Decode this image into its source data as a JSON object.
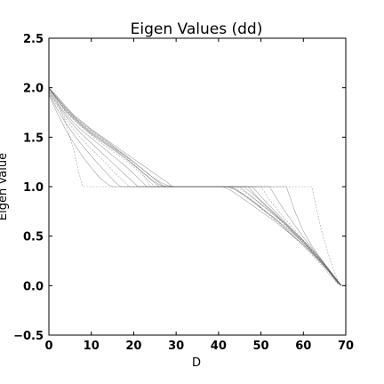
{
  "chart_data": {
    "type": "line",
    "title": "Eigen Values (dd)",
    "xlabel": "D",
    "ylabel": "Eigen Value",
    "xlim": [
      0,
      70
    ],
    "ylim": [
      -0.5,
      2.5
    ],
    "xticks": [
      "0",
      "10",
      "20",
      "30",
      "40",
      "50",
      "60",
      "70"
    ],
    "yticks": [
      "−0.5",
      "0.0",
      "0.5",
      "1.0",
      "1.5",
      "2.0",
      "2.5"
    ],
    "grid": false,
    "legend": "none",
    "line_color": "#555555",
    "series": [
      {
        "x": [
          0,
          2,
          4,
          6,
          8,
          10,
          12,
          14,
          16,
          18,
          20,
          22,
          24,
          26,
          28,
          30,
          40,
          42,
          44,
          46,
          48,
          50,
          52,
          54,
          56,
          58,
          60,
          62,
          64,
          66,
          68,
          69
        ],
        "y": [
          2.0,
          1.88,
          1.76,
          1.68,
          1.6,
          1.53,
          1.47,
          1.41,
          1.35,
          1.29,
          1.22,
          1.15,
          1.08,
          1.02,
          1.0,
          1.0,
          1.0,
          1.0,
          0.97,
          0.92,
          0.86,
          0.79,
          0.72,
          0.65,
          0.57,
          0.49,
          0.41,
          0.33,
          0.25,
          0.15,
          0.03,
          0.0
        ]
      },
      {
        "x": [
          0,
          2,
          4,
          6,
          8,
          10,
          12,
          14,
          16,
          18,
          20,
          22,
          24,
          25,
          30,
          40,
          44,
          46,
          48,
          50,
          52,
          54,
          56,
          58,
          60,
          62,
          64,
          66,
          68,
          69
        ],
        "y": [
          1.98,
          1.87,
          1.75,
          1.67,
          1.59,
          1.52,
          1.45,
          1.39,
          1.33,
          1.27,
          1.2,
          1.12,
          1.04,
          1.0,
          1.0,
          1.0,
          1.0,
          0.95,
          0.89,
          0.82,
          0.75,
          0.68,
          0.6,
          0.52,
          0.44,
          0.35,
          0.26,
          0.16,
          0.04,
          0.0
        ]
      },
      {
        "x": [
          0,
          2,
          4,
          6,
          8,
          10,
          12,
          14,
          16,
          18,
          20,
          22,
          24,
          26,
          27,
          30,
          40,
          43,
          45,
          47,
          49,
          51,
          53,
          55,
          57,
          59,
          61,
          63,
          65,
          67,
          69
        ],
        "y": [
          2.0,
          1.9,
          1.79,
          1.7,
          1.62,
          1.55,
          1.49,
          1.43,
          1.37,
          1.31,
          1.25,
          1.18,
          1.11,
          1.04,
          1.0,
          1.0,
          1.0,
          1.0,
          0.94,
          0.88,
          0.82,
          0.75,
          0.69,
          0.62,
          0.55,
          0.47,
          0.39,
          0.3,
          0.21,
          0.1,
          0.0
        ]
      },
      {
        "x": [
          0,
          2,
          4,
          6,
          8,
          10,
          12,
          14,
          16,
          18,
          20,
          22,
          23,
          30,
          40,
          46,
          48,
          50,
          52,
          54,
          56,
          58,
          60,
          62,
          64,
          66,
          68,
          69
        ],
        "y": [
          1.97,
          1.85,
          1.73,
          1.64,
          1.56,
          1.49,
          1.42,
          1.35,
          1.28,
          1.21,
          1.13,
          1.05,
          1.0,
          1.0,
          1.0,
          1.0,
          0.93,
          0.85,
          0.77,
          0.69,
          0.61,
          0.52,
          0.43,
          0.34,
          0.24,
          0.14,
          0.03,
          0.0
        ]
      },
      {
        "x": [
          0,
          2,
          4,
          6,
          7,
          8,
          40,
          62,
          64,
          66,
          68,
          69
        ],
        "y": [
          2.0,
          1.86,
          1.64,
          1.35,
          1.15,
          1.0,
          1.0,
          1.0,
          0.6,
          0.3,
          0.06,
          0.0
        ]
      },
      {
        "x": [
          0,
          2,
          4,
          6,
          8,
          10,
          12,
          14,
          16,
          18,
          20,
          21,
          30,
          40,
          48,
          50,
          52,
          54,
          56,
          58,
          60,
          62,
          64,
          66,
          68,
          69
        ],
        "y": [
          1.96,
          1.83,
          1.71,
          1.61,
          1.52,
          1.44,
          1.36,
          1.28,
          1.2,
          1.12,
          1.04,
          1.0,
          1.0,
          1.0,
          1.0,
          0.9,
          0.81,
          0.72,
          0.63,
          0.54,
          0.45,
          0.35,
          0.25,
          0.15,
          0.04,
          0.0
        ]
      },
      {
        "x": [
          0,
          2,
          4,
          6,
          8,
          10,
          12,
          14,
          16,
          18,
          20,
          22,
          24,
          26,
          28,
          29,
          30,
          40,
          41,
          43,
          45,
          47,
          49,
          51,
          53,
          55,
          57,
          59,
          61,
          63,
          65,
          67,
          69
        ],
        "y": [
          2.0,
          1.91,
          1.81,
          1.72,
          1.65,
          1.58,
          1.52,
          1.46,
          1.4,
          1.34,
          1.28,
          1.22,
          1.16,
          1.1,
          1.04,
          1.0,
          1.0,
          1.0,
          1.0,
          0.96,
          0.9,
          0.84,
          0.78,
          0.72,
          0.66,
          0.59,
          0.52,
          0.45,
          0.37,
          0.28,
          0.19,
          0.09,
          0.0
        ]
      },
      {
        "x": [
          0,
          2,
          4,
          6,
          8,
          10,
          12,
          14,
          16,
          18,
          19,
          30,
          40,
          50,
          52,
          54,
          56,
          58,
          60,
          62,
          64,
          66,
          68,
          69
        ],
        "y": [
          1.95,
          1.81,
          1.68,
          1.57,
          1.47,
          1.38,
          1.3,
          1.21,
          1.12,
          1.04,
          1.0,
          1.0,
          1.0,
          1.0,
          0.87,
          0.76,
          0.66,
          0.56,
          0.46,
          0.36,
          0.26,
          0.15,
          0.04,
          0.0
        ]
      },
      {
        "x": [
          0,
          2,
          4,
          6,
          8,
          10,
          12,
          14,
          16,
          18,
          20,
          22,
          24,
          26,
          30,
          40,
          45,
          47,
          49,
          51,
          53,
          55,
          57,
          59,
          61,
          63,
          65,
          67,
          69
        ],
        "y": [
          1.99,
          1.88,
          1.77,
          1.69,
          1.61,
          1.54,
          1.48,
          1.42,
          1.36,
          1.29,
          1.22,
          1.15,
          1.07,
          1.0,
          1.0,
          1.0,
          1.0,
          0.93,
          0.86,
          0.79,
          0.72,
          0.65,
          0.57,
          0.49,
          0.41,
          0.32,
          0.22,
          0.11,
          0.0
        ]
      },
      {
        "x": [
          0,
          2,
          4,
          6,
          8,
          10,
          12,
          14,
          16,
          17,
          30,
          40,
          52,
          54,
          56,
          58,
          60,
          62,
          64,
          66,
          68,
          69
        ],
        "y": [
          1.94,
          1.78,
          1.64,
          1.52,
          1.41,
          1.31,
          1.21,
          1.12,
          1.03,
          1.0,
          1.0,
          1.0,
          1.0,
          0.86,
          0.73,
          0.61,
          0.49,
          0.38,
          0.27,
          0.16,
          0.04,
          0.0
        ]
      },
      {
        "x": [
          0,
          2,
          4,
          6,
          8,
          10,
          12,
          14,
          16,
          18,
          20,
          22,
          24,
          30,
          40,
          42,
          44,
          46,
          48,
          50,
          52,
          54,
          56,
          58,
          60,
          62,
          64,
          66,
          68,
          69
        ],
        "y": [
          2.0,
          1.89,
          1.78,
          1.7,
          1.63,
          1.56,
          1.5,
          1.44,
          1.38,
          1.31,
          1.23,
          1.14,
          1.0,
          1.0,
          1.0,
          1.0,
          0.98,
          0.92,
          0.85,
          0.78,
          0.71,
          0.64,
          0.56,
          0.48,
          0.4,
          0.31,
          0.22,
          0.12,
          0.02,
          0.0
        ]
      },
      {
        "x": [
          0,
          2,
          4,
          6,
          8,
          10,
          12,
          14,
          15,
          30,
          40,
          56,
          58,
          60,
          62,
          64,
          66,
          68,
          69
        ],
        "y": [
          1.93,
          1.74,
          1.57,
          1.43,
          1.3,
          1.19,
          1.09,
          1.02,
          1.0,
          1.0,
          1.0,
          1.0,
          0.75,
          0.55,
          0.4,
          0.28,
          0.16,
          0.05,
          0.0
        ]
      },
      {
        "x": [
          0,
          2,
          4,
          6,
          8,
          10,
          12,
          14,
          16,
          18,
          20,
          22,
          24,
          26,
          28,
          30,
          40,
          47,
          49,
          51,
          53,
          55,
          57,
          59,
          61,
          63,
          65,
          67,
          69
        ],
        "y": [
          1.99,
          1.89,
          1.8,
          1.71,
          1.64,
          1.57,
          1.51,
          1.45,
          1.38,
          1.32,
          1.25,
          1.18,
          1.11,
          1.05,
          1.01,
          1.0,
          1.0,
          1.0,
          0.9,
          0.82,
          0.74,
          0.66,
          0.58,
          0.5,
          0.41,
          0.32,
          0.22,
          0.11,
          0.0
        ]
      }
    ]
  }
}
